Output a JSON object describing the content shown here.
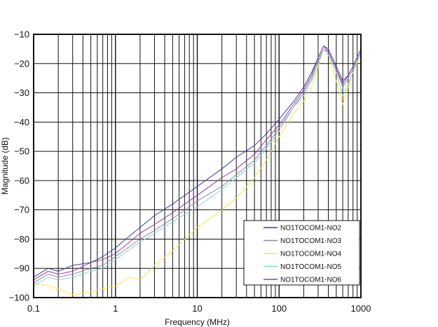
{
  "chart_data": {
    "type": "line",
    "title": "",
    "xlabel": "Frequency (MHz)",
    "ylabel": "Magnitude (dB)",
    "xscale": "log",
    "xlim": [
      0.1,
      1000
    ],
    "ylim": [
      -100,
      -10
    ],
    "xticks": [
      0.1,
      1,
      10,
      100,
      1000
    ],
    "xtick_labels": [
      "0.1",
      "1",
      "10",
      "100",
      "1000"
    ],
    "yticks": [
      -100,
      -90,
      -80,
      -70,
      -60,
      -50,
      -40,
      -30,
      -20,
      -10
    ],
    "ytick_labels": [
      "−100",
      "−90",
      "−80",
      "−70",
      "−60",
      "−50",
      "−40",
      "−30",
      "−20",
      "−10"
    ],
    "grid": true,
    "legend_position": "bottom-right",
    "series": [
      {
        "name": "NO1TOCOM1-NO2",
        "color": "#3a3aa0",
        "x": [
          0.1,
          0.15,
          0.2,
          0.3,
          0.5,
          0.7,
          1,
          2,
          3,
          5,
          10,
          20,
          30,
          50,
          70,
          100,
          150,
          200,
          250,
          300,
          350,
          400,
          500,
          600,
          700,
          800,
          1000
        ],
        "y": [
          -93,
          -90,
          -91,
          -89,
          -88,
          -86,
          -83,
          -76,
          -72,
          -68,
          -62,
          -56,
          -52,
          -48,
          -44,
          -39,
          -33,
          -28,
          -23,
          -18,
          -14,
          -15,
          -21,
          -26,
          -24,
          -21,
          -15
        ]
      },
      {
        "name": "NO1TOCOM1-NO3",
        "color": "#8a8aa6",
        "x": [
          0.1,
          0.15,
          0.2,
          0.3,
          0.5,
          0.7,
          1,
          2,
          3,
          5,
          10,
          20,
          30,
          50,
          70,
          100,
          150,
          200,
          250,
          300,
          350,
          400,
          500,
          600,
          700,
          800,
          1000
        ],
        "y": [
          -95,
          -92,
          -93,
          -92,
          -90,
          -89,
          -86,
          -80,
          -77,
          -73,
          -67,
          -62,
          -58,
          -53,
          -48,
          -42,
          -35,
          -30,
          -25,
          -19,
          -15,
          -16,
          -22,
          -28,
          -25,
          -22,
          -16
        ]
      },
      {
        "name": "NO1TOCOM1-NO4",
        "color": "#f5e642",
        "x": [
          0.1,
          0.15,
          0.2,
          0.3,
          0.5,
          0.7,
          1,
          1.5,
          2,
          3,
          5,
          10,
          20,
          30,
          50,
          70,
          100,
          150,
          200,
          250,
          300,
          350,
          400,
          500,
          600,
          700,
          800,
          1000
        ],
        "y": [
          -95,
          -96,
          -97,
          -99,
          -98,
          -97,
          -96,
          -93,
          -94,
          -89,
          -84,
          -76,
          -70,
          -66,
          -59,
          -53,
          -45,
          -37,
          -33,
          -28,
          -21,
          -15,
          -17,
          -26,
          -34,
          -28,
          -23,
          -17
        ]
      },
      {
        "name": "NO1TOCOM1-NO5",
        "color": "#8ed0d0",
        "x": [
          0.1,
          0.15,
          0.2,
          0.3,
          0.5,
          0.7,
          1,
          2,
          3,
          5,
          10,
          20,
          30,
          50,
          70,
          100,
          150,
          200,
          250,
          300,
          350,
          400,
          500,
          600,
          700,
          800,
          1000
        ],
        "y": [
          -96,
          -93,
          -94,
          -93,
          -91,
          -90,
          -87,
          -81,
          -78,
          -74,
          -69,
          -63,
          -59,
          -54,
          -49,
          -43,
          -35,
          -31,
          -26,
          -20,
          -15,
          -17,
          -23,
          -31,
          -27,
          -23,
          -16
        ]
      },
      {
        "name": "NO1TOCOM1-NO6",
        "color": "#9a3ca0",
        "x": [
          0.1,
          0.15,
          0.2,
          0.3,
          0.5,
          0.7,
          1,
          2,
          3,
          5,
          10,
          20,
          30,
          50,
          70,
          100,
          150,
          200,
          250,
          300,
          350,
          400,
          500,
          600,
          700,
          800,
          1000
        ],
        "y": [
          -94,
          -91,
          -92,
          -91,
          -88,
          -87,
          -85,
          -78,
          -75,
          -71,
          -65,
          -59,
          -56,
          -51,
          -46,
          -41,
          -34,
          -29,
          -24,
          -18,
          -14,
          -16,
          -22,
          -27,
          -24,
          -21,
          -15
        ]
      }
    ]
  }
}
